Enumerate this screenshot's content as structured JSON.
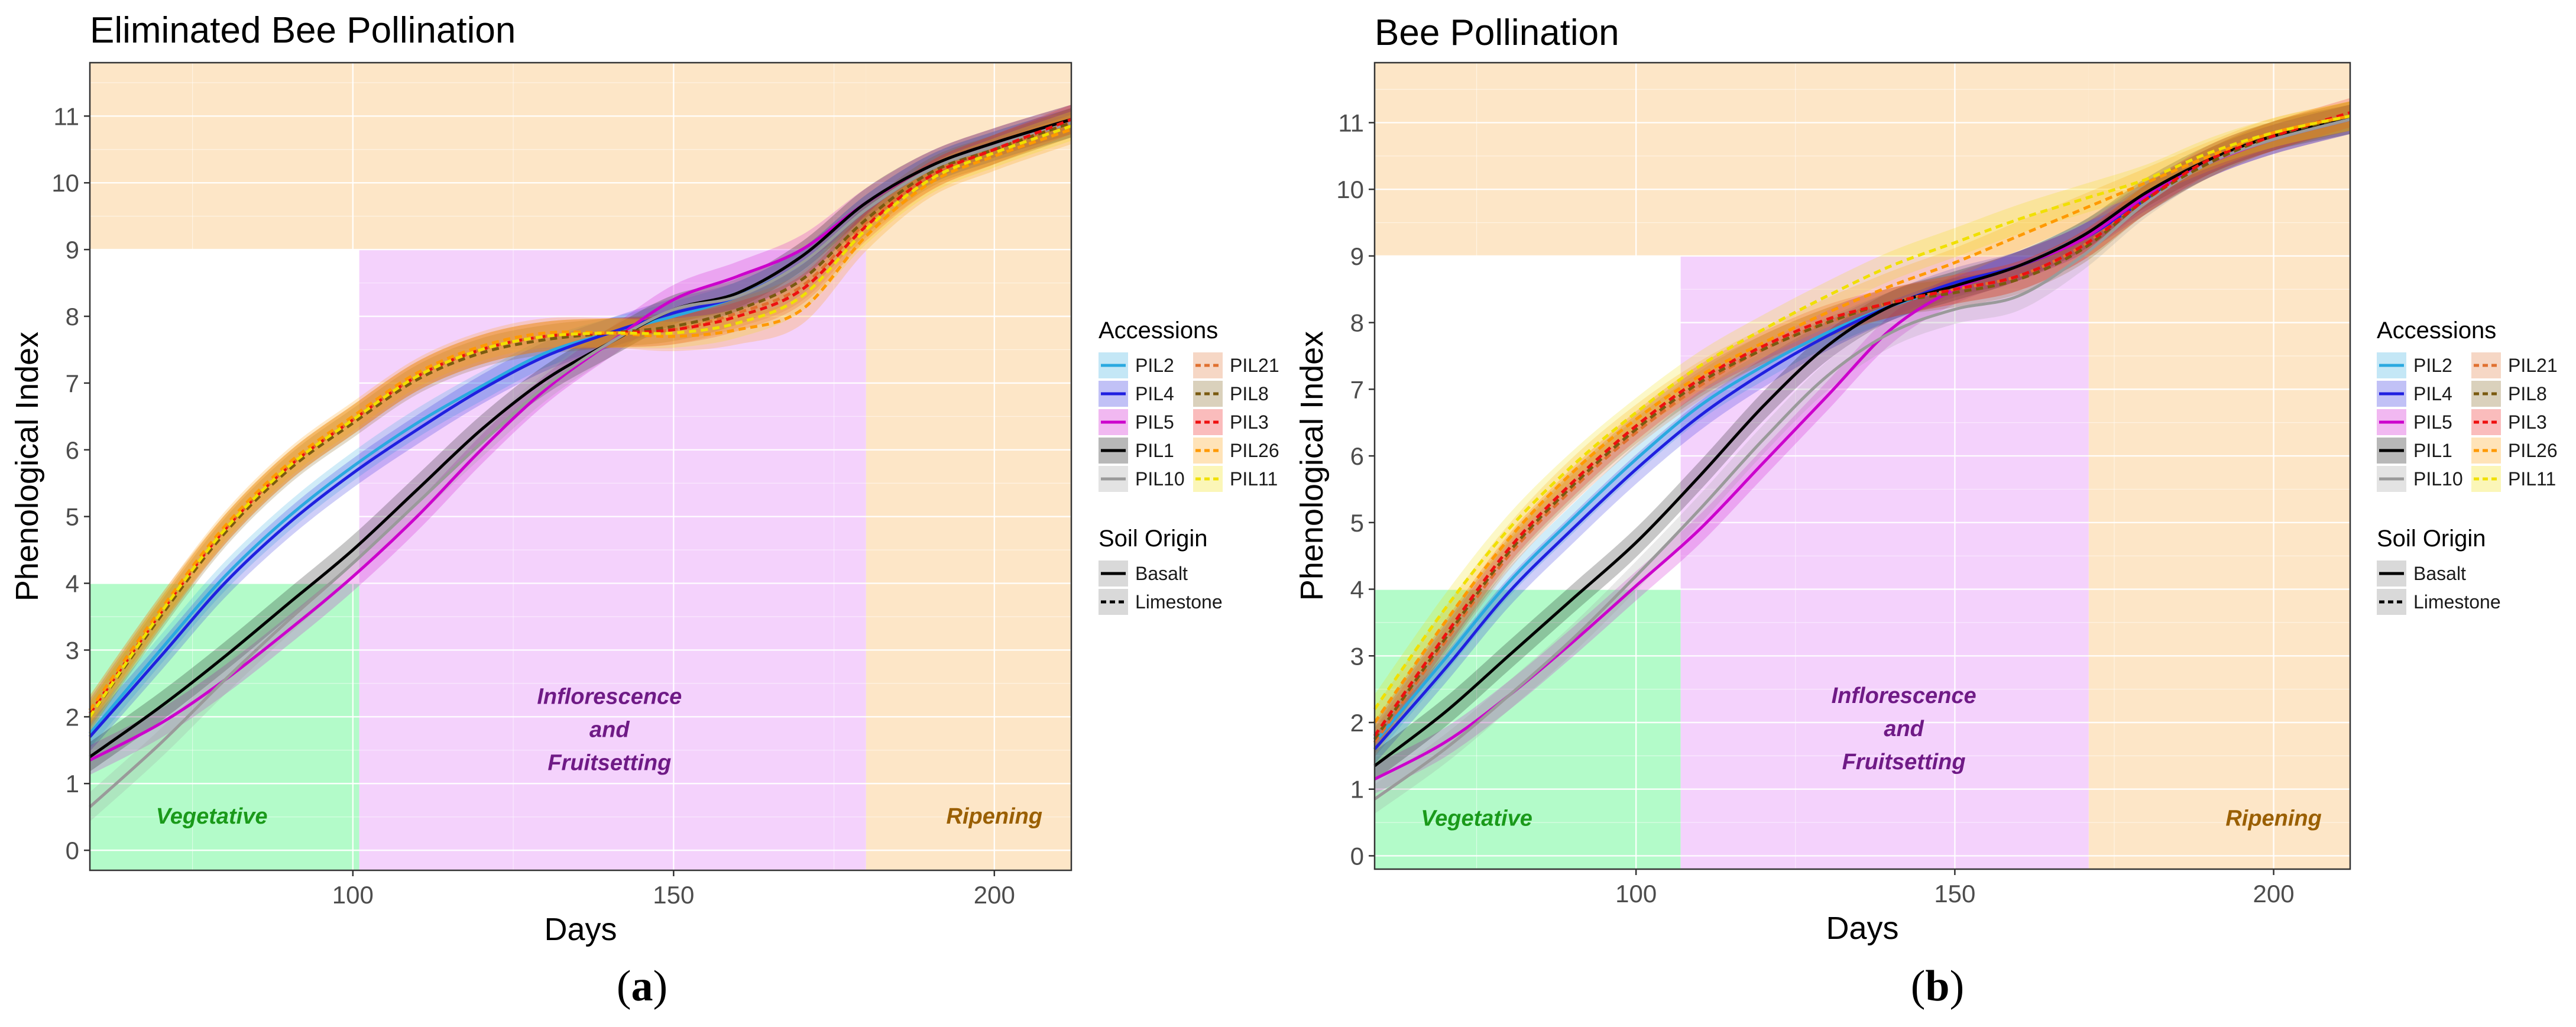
{
  "chart_data": [
    {
      "type": "line",
      "panel": "a",
      "title": "Eliminated Bee Pollination",
      "xlabel": "Days",
      "ylabel": "Phenological Index",
      "xlim": [
        59,
        212
      ],
      "ylim": [
        -0.3,
        11.8
      ],
      "xticks": [
        100,
        150,
        200
      ],
      "yticks": [
        0,
        1,
        2,
        3,
        4,
        5,
        6,
        7,
        8,
        9,
        10,
        11
      ],
      "caption": "(a)",
      "regions": [
        {
          "name": "Vegetative",
          "label_lines": [
            "Vegetative"
          ],
          "x0": 59,
          "x1": 101,
          "y0": -0.3,
          "y1": 4,
          "color": "#b3fbc9",
          "text_color": "#1a9a1a",
          "label_x": 78,
          "label_y": 0.4
        },
        {
          "name": "Inflorescence and Fruitsetting",
          "label_lines": [
            "Inflorescence",
            "and",
            "Fruitsetting"
          ],
          "x0": 101,
          "x1": 180,
          "y0": -0.3,
          "y1": 9,
          "color": "#f4d2fc",
          "text_color": "#6f1a86",
          "label_x": 140,
          "label_y": 1.2
        },
        {
          "name": "Ripening",
          "label_lines": [
            "Ripening"
          ],
          "x0": 180,
          "x1": 212,
          "y0": -0.3,
          "y1": 11.8,
          "color": "#fde6c7",
          "text_color": "#9a5f00",
          "label_x": 200,
          "label_y": 0.4
        },
        {
          "name": "Upper background",
          "label_lines": [],
          "x0": 59,
          "x1": 180,
          "y0": 9,
          "y1": 11.8,
          "color": "#fde6c7",
          "text_color": "#9a5f00",
          "label_x": 0,
          "label_y": 0
        }
      ],
      "series": [
        {
          "name": "PIL2",
          "soil": "Basalt",
          "color": "#2aa9e0",
          "x": [
            59,
            70,
            80,
            90,
            100,
            110,
            120,
            130,
            140,
            150,
            160,
            170,
            180,
            190,
            200,
            212
          ],
          "y": [
            1.75,
            3.0,
            4.1,
            5.0,
            5.75,
            6.4,
            6.95,
            7.45,
            7.75,
            8.0,
            8.3,
            8.8,
            9.6,
            10.2,
            10.55,
            10.9
          ]
        },
        {
          "name": "PIL4",
          "soil": "Basalt",
          "color": "#2020e0",
          "x": [
            59,
            70,
            80,
            90,
            100,
            110,
            120,
            130,
            140,
            150,
            160,
            170,
            180,
            190,
            200,
            212
          ],
          "y": [
            1.7,
            2.9,
            4.0,
            4.9,
            5.65,
            6.3,
            6.9,
            7.4,
            7.75,
            8.05,
            8.3,
            8.8,
            9.6,
            10.2,
            10.55,
            10.9
          ]
        },
        {
          "name": "PIL5",
          "soil": "Basalt",
          "color": "#cc00cc",
          "x": [
            59,
            70,
            80,
            90,
            100,
            110,
            120,
            130,
            140,
            150,
            160,
            170,
            180,
            190,
            200,
            212
          ],
          "y": [
            1.35,
            1.9,
            2.55,
            3.3,
            4.1,
            5.0,
            6.0,
            6.9,
            7.6,
            8.25,
            8.6,
            9.0,
            9.7,
            10.25,
            10.6,
            10.95
          ]
        },
        {
          "name": "PIL1",
          "soil": "Basalt",
          "color": "#000000",
          "x": [
            59,
            70,
            80,
            90,
            100,
            110,
            120,
            130,
            140,
            150,
            160,
            170,
            180,
            190,
            200,
            212
          ],
          "y": [
            1.4,
            2.15,
            2.9,
            3.7,
            4.5,
            5.4,
            6.3,
            7.05,
            7.6,
            8.1,
            8.35,
            8.9,
            9.7,
            10.25,
            10.6,
            10.95
          ]
        },
        {
          "name": "PIL10",
          "soil": "Basalt",
          "color": "#9a9a9a",
          "x": [
            59,
            70,
            80,
            90,
            100,
            110,
            120,
            130,
            140,
            150,
            160,
            170,
            180,
            190,
            200,
            212
          ],
          "y": [
            0.65,
            1.6,
            2.55,
            3.45,
            4.3,
            5.2,
            6.1,
            6.95,
            7.6,
            8.1,
            8.3,
            8.8,
            9.6,
            10.2,
            10.55,
            10.9
          ]
        },
        {
          "name": "PIL21",
          "soil": "Limestone",
          "color": "#e07030",
          "x": [
            59,
            70,
            80,
            90,
            100,
            110,
            120,
            130,
            140,
            150,
            160,
            170,
            180,
            190,
            200,
            212
          ],
          "y": [
            2.1,
            3.6,
            4.8,
            5.75,
            6.45,
            7.1,
            7.5,
            7.7,
            7.75,
            7.8,
            8.05,
            8.45,
            9.4,
            10.1,
            10.5,
            10.9
          ]
        },
        {
          "name": "PIL8",
          "soil": "Limestone",
          "color": "#7a5a10",
          "x": [
            59,
            70,
            80,
            90,
            100,
            110,
            120,
            130,
            140,
            150,
            160,
            170,
            180,
            190,
            200,
            212
          ],
          "y": [
            2.0,
            3.5,
            4.75,
            5.7,
            6.4,
            7.05,
            7.45,
            7.65,
            7.75,
            7.85,
            8.1,
            8.55,
            9.45,
            10.15,
            10.5,
            10.9
          ]
        },
        {
          "name": "PIL3",
          "soil": "Limestone",
          "color": "#ee1010",
          "x": [
            59,
            70,
            80,
            90,
            100,
            110,
            120,
            130,
            140,
            150,
            160,
            170,
            180,
            190,
            200,
            212
          ],
          "y": [
            2.05,
            3.55,
            4.8,
            5.75,
            6.45,
            7.1,
            7.5,
            7.7,
            7.75,
            7.8,
            8.0,
            8.4,
            9.35,
            10.1,
            10.5,
            10.95
          ]
        },
        {
          "name": "PIL26",
          "soil": "Limestone",
          "color": "#ff9900",
          "x": [
            59,
            70,
            80,
            90,
            100,
            110,
            120,
            130,
            140,
            150,
            160,
            170,
            180,
            190,
            200,
            212
          ],
          "y": [
            2.1,
            3.6,
            4.85,
            5.8,
            6.5,
            7.15,
            7.55,
            7.75,
            7.75,
            7.7,
            7.8,
            8.1,
            9.2,
            10.0,
            10.4,
            10.8
          ]
        },
        {
          "name": "PIL11",
          "soil": "Limestone",
          "color": "#f0e000",
          "x": [
            59,
            70,
            80,
            90,
            100,
            110,
            120,
            130,
            140,
            150,
            160,
            170,
            180,
            190,
            200,
            212
          ],
          "y": [
            2.0,
            3.55,
            4.8,
            5.75,
            6.45,
            7.1,
            7.5,
            7.7,
            7.75,
            7.75,
            7.9,
            8.3,
            9.3,
            10.05,
            10.45,
            10.85
          ]
        }
      ]
    },
    {
      "type": "line",
      "panel": "b",
      "title": "Bee Pollination",
      "xlabel": "Days",
      "ylabel": "Phenological Index",
      "xlim": [
        59,
        212
      ],
      "ylim": [
        -0.2,
        11.9
      ],
      "xticks": [
        100,
        150,
        200
      ],
      "yticks": [
        0,
        1,
        2,
        3,
        4,
        5,
        6,
        7,
        8,
        9,
        10,
        11
      ],
      "caption": "(b)",
      "regions": [
        {
          "name": "Vegetative",
          "label_lines": [
            "Vegetative"
          ],
          "x0": 59,
          "x1": 107,
          "y0": -0.2,
          "y1": 4,
          "color": "#b3fbc9",
          "text_color": "#1a9a1a",
          "label_x": 75,
          "label_y": 0.45
        },
        {
          "name": "Inflorescence and Fruitsetting",
          "label_lines": [
            "Inflorescence",
            "and",
            "Fruitsetting"
          ],
          "x0": 107,
          "x1": 171,
          "y0": -0.2,
          "y1": 9,
          "color": "#f4d2fc",
          "text_color": "#6f1a86",
          "label_x": 142,
          "label_y": 1.3
        },
        {
          "name": "Ripening",
          "label_lines": [
            "Ripening"
          ],
          "x0": 171,
          "x1": 212,
          "y0": -0.2,
          "y1": 11.9,
          "color": "#fde6c7",
          "text_color": "#9a5f00",
          "label_x": 200,
          "label_y": 0.45
        },
        {
          "name": "Upper background",
          "label_lines": [],
          "x0": 59,
          "x1": 171,
          "y0": 9,
          "y1": 11.9,
          "color": "#fde6c7",
          "text_color": "#9a5f00",
          "label_x": 0,
          "label_y": 0
        }
      ],
      "series": [
        {
          "name": "PIL2",
          "soil": "Basalt",
          "color": "#2aa9e0",
          "x": [
            59,
            70,
            80,
            90,
            100,
            110,
            120,
            130,
            140,
            150,
            160,
            170,
            180,
            190,
            200,
            212
          ],
          "y": [
            1.7,
            2.95,
            4.1,
            5.05,
            5.95,
            6.75,
            7.35,
            7.85,
            8.25,
            8.55,
            8.85,
            9.3,
            9.9,
            10.4,
            10.75,
            11.05
          ]
        },
        {
          "name": "PIL4",
          "soil": "Basalt",
          "color": "#2020e0",
          "x": [
            59,
            70,
            80,
            90,
            100,
            110,
            120,
            130,
            140,
            150,
            160,
            170,
            180,
            190,
            200,
            212
          ],
          "y": [
            1.6,
            2.8,
            3.95,
            4.9,
            5.8,
            6.6,
            7.25,
            7.8,
            8.25,
            8.6,
            8.85,
            9.25,
            9.85,
            10.4,
            10.75,
            11.05
          ]
        },
        {
          "name": "PIL5",
          "soil": "Basalt",
          "color": "#cc00cc",
          "x": [
            59,
            70,
            80,
            90,
            100,
            110,
            120,
            130,
            140,
            150,
            160,
            170,
            180,
            190,
            200,
            212
          ],
          "y": [
            1.15,
            1.7,
            2.4,
            3.2,
            4.05,
            4.9,
            5.9,
            6.9,
            7.9,
            8.5,
            8.85,
            9.25,
            9.9,
            10.4,
            10.75,
            11.05
          ]
        },
        {
          "name": "PIL1",
          "soil": "Basalt",
          "color": "#000000",
          "x": [
            59,
            70,
            80,
            90,
            100,
            110,
            120,
            130,
            140,
            150,
            160,
            170,
            180,
            190,
            200,
            212
          ],
          "y": [
            1.35,
            2.15,
            3.0,
            3.85,
            4.7,
            5.7,
            6.75,
            7.65,
            8.25,
            8.55,
            8.85,
            9.3,
            9.95,
            10.45,
            10.8,
            11.05
          ]
        },
        {
          "name": "PIL10",
          "soil": "Basalt",
          "color": "#9a9a9a",
          "x": [
            59,
            70,
            80,
            90,
            100,
            110,
            120,
            130,
            140,
            150,
            160,
            170,
            180,
            190,
            200,
            212
          ],
          "y": [
            0.85,
            1.6,
            2.4,
            3.25,
            4.2,
            5.2,
            6.25,
            7.2,
            7.85,
            8.2,
            8.4,
            9.0,
            9.8,
            10.4,
            10.75,
            11.05
          ]
        },
        {
          "name": "PIL21",
          "soil": "Limestone",
          "color": "#e07030",
          "x": [
            59,
            70,
            80,
            90,
            100,
            110,
            120,
            130,
            140,
            150,
            160,
            170,
            180,
            190,
            200,
            212
          ],
          "y": [
            1.7,
            3.2,
            4.5,
            5.5,
            6.35,
            7.05,
            7.6,
            8.0,
            8.3,
            8.5,
            8.7,
            9.15,
            9.85,
            10.4,
            10.8,
            11.1
          ]
        },
        {
          "name": "PIL8",
          "soil": "Limestone",
          "color": "#7a5a10",
          "x": [
            59,
            70,
            80,
            90,
            100,
            110,
            120,
            130,
            140,
            150,
            160,
            170,
            180,
            190,
            200,
            212
          ],
          "y": [
            1.75,
            3.25,
            4.55,
            5.55,
            6.4,
            7.1,
            7.6,
            8.0,
            8.3,
            8.45,
            8.65,
            9.1,
            9.85,
            10.4,
            10.8,
            11.1
          ]
        },
        {
          "name": "PIL3",
          "soil": "Limestone",
          "color": "#ee1010",
          "x": [
            59,
            70,
            80,
            90,
            100,
            110,
            120,
            130,
            140,
            150,
            160,
            170,
            180,
            190,
            200,
            212
          ],
          "y": [
            1.8,
            3.3,
            4.6,
            5.6,
            6.45,
            7.15,
            7.65,
            8.05,
            8.3,
            8.5,
            8.7,
            9.15,
            9.85,
            10.45,
            10.8,
            11.15
          ]
        },
        {
          "name": "PIL26",
          "soil": "Limestone",
          "color": "#ff9900",
          "x": [
            59,
            70,
            80,
            90,
            100,
            110,
            120,
            130,
            140,
            150,
            160,
            170,
            180,
            190,
            200,
            212
          ],
          "y": [
            2.0,
            3.5,
            4.75,
            5.75,
            6.55,
            7.2,
            7.7,
            8.15,
            8.55,
            8.9,
            9.3,
            9.7,
            10.1,
            10.5,
            10.85,
            11.1
          ]
        },
        {
          "name": "PIL11",
          "soil": "Limestone",
          "color": "#f0e000",
          "x": [
            59,
            70,
            80,
            90,
            100,
            110,
            120,
            130,
            140,
            150,
            160,
            170,
            180,
            190,
            200,
            212
          ],
          "y": [
            2.2,
            3.7,
            4.9,
            5.85,
            6.65,
            7.35,
            7.9,
            8.4,
            8.85,
            9.2,
            9.55,
            9.85,
            10.15,
            10.55,
            10.85,
            11.1
          ]
        }
      ]
    }
  ],
  "legend": {
    "accessions_title": "Accessions",
    "soil_title": "Soil Origin",
    "soil_items": [
      "Basalt",
      "Limestone"
    ]
  }
}
